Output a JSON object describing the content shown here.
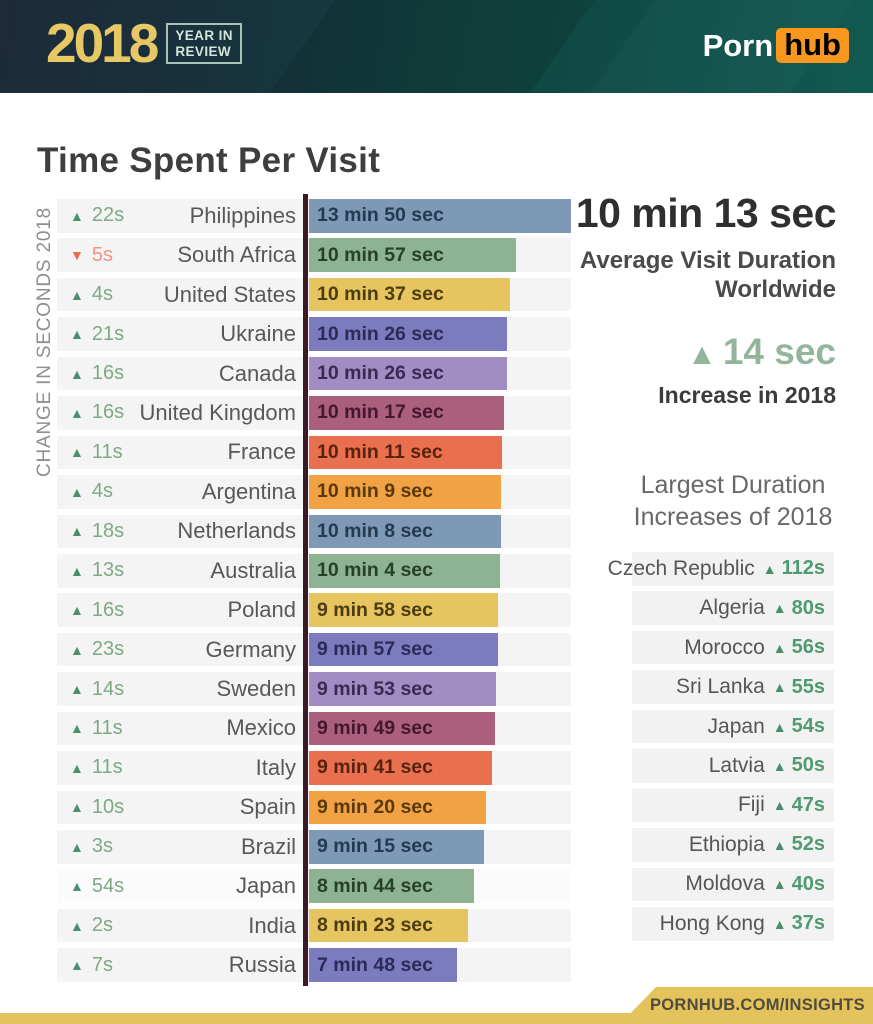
{
  "header": {
    "year": "2018",
    "year_label_line1": "YEAR IN",
    "year_label_line2": "REVIEW",
    "brand_porn": "Porn",
    "brand_hub": "hub"
  },
  "title": "Time Spent Per Visit",
  "axis_label": "CHANGE IN SECONDS 2018",
  "colors": {
    "accent_gold": "#e5c35c",
    "header_dark_navy": "#1d2a38",
    "header_teal": "#0f5048",
    "positive_green": "#4a8f6d",
    "negative_red": "#ed6a50",
    "sage_green_highlight": "#93b59d",
    "divider_maroon": "#3b1a26"
  },
  "chart_data": {
    "type": "bar",
    "orientation": "horizontal",
    "title": "Time Spent Per Visit",
    "note": "bar length proportional to visit duration in seconds; left column shows change in seconds 2018",
    "max_seconds": 830,
    "rows": [
      {
        "country": "Philippines",
        "duration": "13 min 50 sec",
        "seconds": 830,
        "change_label": "22s",
        "direction": "up",
        "bar_color": "#7d99b6",
        "label_color": "#253950"
      },
      {
        "country": "South Africa",
        "duration": "10 min 57 sec",
        "seconds": 657,
        "change_label": "5s",
        "direction": "down",
        "bar_color": "#8eb392",
        "label_color": "#27402a"
      },
      {
        "country": "United States",
        "duration": "10 min 37 sec",
        "seconds": 637,
        "change_label": "4s",
        "direction": "up",
        "bar_color": "#e6c45f",
        "label_color": "#4c3c12"
      },
      {
        "country": "Ukraine",
        "duration": "10 min 26 sec",
        "seconds": 626,
        "change_label": "21s",
        "direction": "up",
        "bar_color": "#7c7bbd",
        "label_color": "#2c2a58"
      },
      {
        "country": "Canada",
        "duration": "10 min 26 sec",
        "seconds": 626,
        "change_label": "16s",
        "direction": "up",
        "bar_color": "#a28dc3",
        "label_color": "#382a52"
      },
      {
        "country": "United Kingdom",
        "duration": "10 min 17 sec",
        "seconds": 617,
        "change_label": "16s",
        "direction": "up",
        "bar_color": "#aa5f7d",
        "label_color": "#43182e"
      },
      {
        "country": "France",
        "duration": "10 min 11 sec",
        "seconds": 611,
        "change_label": "11s",
        "direction": "up",
        "bar_color": "#e9704f",
        "label_color": "#59220e"
      },
      {
        "country": "Argentina",
        "duration": "10 min 9 sec",
        "seconds": 609,
        "change_label": "4s",
        "direction": "up",
        "bar_color": "#f0a245",
        "label_color": "#5a380a"
      },
      {
        "country": "Netherlands",
        "duration": "10 min 8 sec",
        "seconds": 608,
        "change_label": "18s",
        "direction": "up",
        "bar_color": "#7d99b6",
        "label_color": "#253950"
      },
      {
        "country": "Australia",
        "duration": "10 min 4 sec",
        "seconds": 604,
        "change_label": "13s",
        "direction": "up",
        "bar_color": "#8eb392",
        "label_color": "#27402a"
      },
      {
        "country": "Poland",
        "duration": "9 min 58 sec",
        "seconds": 598,
        "change_label": "16s",
        "direction": "up",
        "bar_color": "#e6c45f",
        "label_color": "#4c3c12"
      },
      {
        "country": "Germany",
        "duration": "9 min 57 sec",
        "seconds": 597,
        "change_label": "23s",
        "direction": "up",
        "bar_color": "#7c7bbd",
        "label_color": "#2c2a58"
      },
      {
        "country": "Sweden",
        "duration": "9 min 53 sec",
        "seconds": 593,
        "change_label": "14s",
        "direction": "up",
        "bar_color": "#a28dc3",
        "label_color": "#382a52"
      },
      {
        "country": "Mexico",
        "duration": "9 min 49 sec",
        "seconds": 589,
        "change_label": "11s",
        "direction": "up",
        "bar_color": "#aa5f7d",
        "label_color": "#43182e"
      },
      {
        "country": "Italy",
        "duration": "9 min 41 sec",
        "seconds": 581,
        "change_label": "11s",
        "direction": "up",
        "bar_color": "#e9704f",
        "label_color": "#59220e"
      },
      {
        "country": "Spain",
        "duration": "9 min 20 sec",
        "seconds": 560,
        "change_label": "10s",
        "direction": "up",
        "bar_color": "#f0a245",
        "label_color": "#5a380a"
      },
      {
        "country": "Brazil",
        "duration": "9 min 15 sec",
        "seconds": 555,
        "change_label": "3s",
        "direction": "up",
        "bar_color": "#7d99b6",
        "label_color": "#253950"
      },
      {
        "country": "Japan",
        "duration": "8 min 44 sec",
        "seconds": 524,
        "change_label": "54s",
        "direction": "up",
        "bar_color": "#8eb392",
        "label_color": "#27402a",
        "highlight": true
      },
      {
        "country": "India",
        "duration": "8 min 23 sec",
        "seconds": 503,
        "change_label": "2s",
        "direction": "up",
        "bar_color": "#e6c45f",
        "label_color": "#4c3c12"
      },
      {
        "country": "Russia",
        "duration": "7 min 48 sec",
        "seconds": 468,
        "change_label": "7s",
        "direction": "up",
        "bar_color": "#7c7bbd",
        "label_color": "#2c2a58"
      }
    ]
  },
  "summary": {
    "avg_value": "10 min 13 sec",
    "avg_caption_line1": "Average Visit Duration",
    "avg_caption_line2": "Worldwide",
    "increase_value": "14 sec",
    "increase_caption": "Increase in 2018"
  },
  "increases": {
    "heading_line1": "Largest Duration",
    "heading_line2": "Increases of 2018",
    "items": [
      {
        "country": "Czech Republic",
        "value": "112s"
      },
      {
        "country": "Algeria",
        "value": "80s"
      },
      {
        "country": "Morocco",
        "value": "56s"
      },
      {
        "country": "Sri Lanka",
        "value": "55s"
      },
      {
        "country": "Japan",
        "value": "54s"
      },
      {
        "country": "Latvia",
        "value": "50s"
      },
      {
        "country": "Fiji",
        "value": "47s"
      },
      {
        "country": "Ethiopia",
        "value": "52s"
      },
      {
        "country": "Moldova",
        "value": "40s"
      },
      {
        "country": "Hong Kong",
        "value": "37s"
      }
    ]
  },
  "footer": {
    "url_label": "PORNHUB.COM/INSIGHTS"
  }
}
